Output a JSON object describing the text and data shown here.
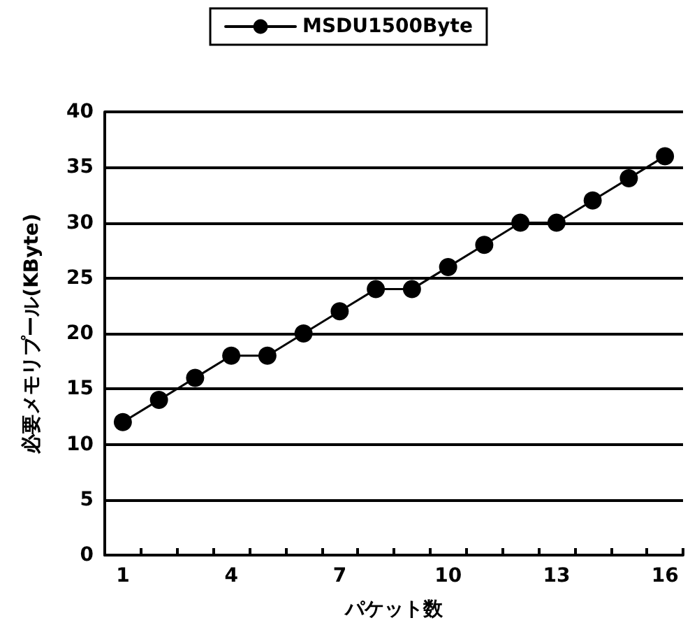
{
  "chart_data": {
    "type": "line",
    "xlabel": "パケット数",
    "ylabel": "必要メモリプール(KByte)",
    "categories": [
      "1",
      null,
      null,
      "4",
      null,
      null,
      "7",
      null,
      null,
      "10",
      null,
      null,
      "13",
      null,
      null,
      "16"
    ],
    "series": [
      {
        "name": "MSDU1500Byte",
        "color": "#000000",
        "values": [
          12,
          14,
          16,
          18,
          18,
          20,
          22,
          24,
          24,
          26,
          28,
          30,
          30,
          32,
          34,
          36
        ]
      }
    ],
    "ylim": [
      0,
      40
    ],
    "yticks": [
      0,
      5,
      10,
      15,
      20,
      25,
      30,
      35,
      40
    ],
    "grid": "y",
    "legend": "top",
    "marker": "circle",
    "line_style": "solid"
  }
}
